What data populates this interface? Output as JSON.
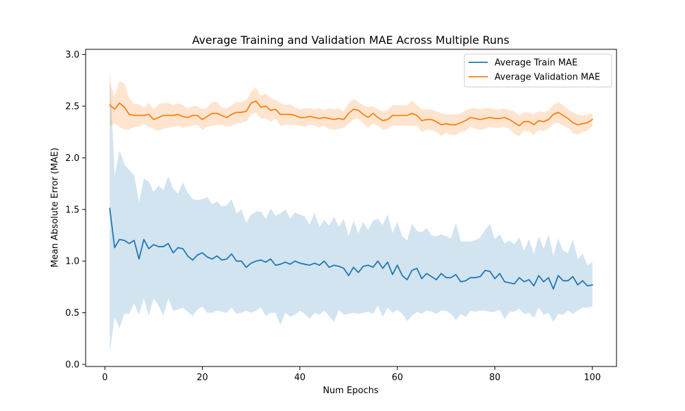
{
  "chart_data": {
    "type": "line",
    "title": "Average Training and Validation MAE Across Multiple Runs",
    "xlabel": "Num Epochs",
    "ylabel": "Mean Absolute Error (MAE)",
    "xlim": [
      -3.95,
      104.95
    ],
    "ylim": [
      -0.02,
      3.05
    ],
    "x_ticks": [
      0,
      20,
      40,
      60,
      80,
      100
    ],
    "y_ticks": [
      0.0,
      0.5,
      1.0,
      1.5,
      2.0,
      2.5,
      3.0
    ],
    "x_tick_labels": [
      "0",
      "20",
      "40",
      "60",
      "80",
      "100"
    ],
    "y_tick_labels": [
      "0.0",
      "0.5",
      "1.0",
      "1.5",
      "2.0",
      "2.5",
      "3.0"
    ],
    "grid": false,
    "legend_position": "top-right",
    "x": [
      1,
      2,
      3,
      4,
      5,
      6,
      7,
      8,
      9,
      10,
      11,
      12,
      13,
      14,
      15,
      16,
      17,
      18,
      19,
      20,
      21,
      22,
      23,
      24,
      25,
      26,
      27,
      28,
      29,
      30,
      31,
      32,
      33,
      34,
      35,
      36,
      37,
      38,
      39,
      40,
      41,
      42,
      43,
      44,
      45,
      46,
      47,
      48,
      49,
      50,
      51,
      52,
      53,
      54,
      55,
      56,
      57,
      58,
      59,
      60,
      61,
      62,
      63,
      64,
      65,
      66,
      67,
      68,
      69,
      70,
      71,
      72,
      73,
      74,
      75,
      76,
      77,
      78,
      79,
      80,
      81,
      82,
      83,
      84,
      85,
      86,
      87,
      88,
      89,
      90,
      91,
      92,
      93,
      94,
      95,
      96,
      97,
      98,
      99,
      100
    ],
    "series": [
      {
        "name": "Average Train MAE",
        "color": "#1f77b4",
        "band_color": "#1f77b4",
        "band_opacity": 0.2,
        "values": [
          1.51,
          1.13,
          1.21,
          1.2,
          1.17,
          1.2,
          1.02,
          1.21,
          1.12,
          1.16,
          1.14,
          1.14,
          1.17,
          1.08,
          1.13,
          1.12,
          1.05,
          1.01,
          1.06,
          1.08,
          1.04,
          1.02,
          1.05,
          1.01,
          1.02,
          1.07,
          1.0,
          1.0,
          0.94,
          0.98,
          1.0,
          1.01,
          0.99,
          1.02,
          0.96,
          0.97,
          0.99,
          0.97,
          1.0,
          0.98,
          0.97,
          0.96,
          0.98,
          0.96,
          1.0,
          0.94,
          0.96,
          0.95,
          0.93,
          0.86,
          0.94,
          0.89,
          0.95,
          0.96,
          0.94,
          1.0,
          0.93,
          0.99,
          0.87,
          0.96,
          0.86,
          0.82,
          0.91,
          0.93,
          0.83,
          0.88,
          0.85,
          0.82,
          0.88,
          0.84,
          0.84,
          0.87,
          0.8,
          0.81,
          0.84,
          0.84,
          0.85,
          0.91,
          0.9,
          0.83,
          0.88,
          0.8,
          0.79,
          0.78,
          0.84,
          0.8,
          0.82,
          0.76,
          0.86,
          0.8,
          0.84,
          0.73,
          0.86,
          0.81,
          0.81,
          0.85,
          0.77,
          0.81,
          0.76,
          0.77
        ],
        "upper": [
          2.88,
          1.82,
          2.07,
          1.94,
          1.88,
          1.83,
          1.57,
          1.8,
          1.77,
          1.67,
          1.73,
          1.69,
          1.82,
          1.7,
          1.65,
          1.76,
          1.66,
          1.6,
          1.59,
          1.6,
          1.62,
          1.55,
          1.58,
          1.53,
          1.54,
          1.6,
          1.46,
          1.5,
          1.37,
          1.45,
          1.48,
          1.48,
          1.41,
          1.51,
          1.44,
          1.46,
          1.5,
          1.41,
          1.47,
          1.45,
          1.43,
          1.35,
          1.47,
          1.33,
          1.4,
          1.34,
          1.43,
          1.33,
          1.41,
          1.24,
          1.39,
          1.27,
          1.38,
          1.3,
          1.39,
          1.41,
          1.35,
          1.45,
          1.27,
          1.38,
          1.24,
          1.2,
          1.36,
          1.29,
          1.28,
          1.32,
          1.25,
          1.24,
          1.26,
          1.24,
          1.22,
          1.37,
          1.19,
          1.19,
          1.19,
          1.2,
          1.23,
          1.3,
          1.36,
          1.21,
          1.26,
          1.17,
          1.2,
          1.16,
          1.23,
          1.1,
          1.21,
          1.07,
          1.24,
          1.12,
          1.26,
          1.05,
          1.22,
          1.1,
          1.08,
          1.21,
          1.02,
          1.07,
          0.96,
          0.99
        ],
        "lower": [
          0.12,
          0.46,
          0.35,
          0.49,
          0.49,
          0.59,
          0.48,
          0.64,
          0.47,
          0.64,
          0.57,
          0.47,
          0.64,
          0.52,
          0.53,
          0.55,
          0.51,
          0.47,
          0.53,
          0.56,
          0.5,
          0.5,
          0.52,
          0.51,
          0.5,
          0.55,
          0.49,
          0.5,
          0.52,
          0.5,
          0.52,
          0.55,
          0.47,
          0.5,
          0.5,
          0.38,
          0.5,
          0.46,
          0.48,
          0.52,
          0.49,
          0.44,
          0.5,
          0.48,
          0.52,
          0.47,
          0.41,
          0.53,
          0.48,
          0.49,
          0.5,
          0.49,
          0.5,
          0.51,
          0.49,
          0.57,
          0.46,
          0.55,
          0.5,
          0.53,
          0.49,
          0.42,
          0.47,
          0.51,
          0.49,
          0.52,
          0.51,
          0.49,
          0.52,
          0.52,
          0.49,
          0.43,
          0.49,
          0.46,
          0.52,
          0.51,
          0.52,
          0.52,
          0.51,
          0.51,
          0.53,
          0.44,
          0.51,
          0.51,
          0.54,
          0.49,
          0.5,
          0.45,
          0.55,
          0.48,
          0.5,
          0.41,
          0.49,
          0.48,
          0.52,
          0.49,
          0.52,
          0.55,
          0.55,
          0.56
        ]
      },
      {
        "name": "Average Validation MAE",
        "color": "#ff7f0e",
        "band_color": "#ff7f0e",
        "band_opacity": 0.2,
        "values": [
          2.51,
          2.47,
          2.53,
          2.49,
          2.42,
          2.41,
          2.41,
          2.41,
          2.42,
          2.37,
          2.39,
          2.41,
          2.41,
          2.41,
          2.42,
          2.4,
          2.39,
          2.41,
          2.41,
          2.37,
          2.4,
          2.43,
          2.43,
          2.41,
          2.39,
          2.42,
          2.44,
          2.44,
          2.45,
          2.53,
          2.55,
          2.49,
          2.5,
          2.46,
          2.47,
          2.42,
          2.42,
          2.42,
          2.41,
          2.39,
          2.39,
          2.4,
          2.39,
          2.38,
          2.39,
          2.38,
          2.37,
          2.38,
          2.37,
          2.43,
          2.47,
          2.46,
          2.42,
          2.39,
          2.43,
          2.39,
          2.36,
          2.37,
          2.41,
          2.41,
          2.41,
          2.41,
          2.43,
          2.41,
          2.36,
          2.37,
          2.37,
          2.35,
          2.32,
          2.33,
          2.32,
          2.32,
          2.34,
          2.36,
          2.39,
          2.38,
          2.37,
          2.38,
          2.39,
          2.38,
          2.38,
          2.39,
          2.37,
          2.34,
          2.31,
          2.35,
          2.35,
          2.32,
          2.36,
          2.35,
          2.37,
          2.42,
          2.44,
          2.41,
          2.38,
          2.34,
          2.32,
          2.33,
          2.34,
          2.37
        ],
        "upper": [
          2.73,
          2.6,
          2.74,
          2.72,
          2.58,
          2.52,
          2.52,
          2.49,
          2.53,
          2.47,
          2.52,
          2.53,
          2.53,
          2.51,
          2.53,
          2.51,
          2.48,
          2.5,
          2.5,
          2.47,
          2.49,
          2.54,
          2.54,
          2.49,
          2.48,
          2.51,
          2.54,
          2.54,
          2.56,
          2.64,
          2.68,
          2.6,
          2.62,
          2.58,
          2.56,
          2.53,
          2.51,
          2.52,
          2.49,
          2.47,
          2.48,
          2.48,
          2.47,
          2.48,
          2.46,
          2.48,
          2.47,
          2.48,
          2.45,
          2.53,
          2.57,
          2.54,
          2.51,
          2.49,
          2.5,
          2.47,
          2.45,
          2.46,
          2.51,
          2.51,
          2.51,
          2.51,
          2.55,
          2.51,
          2.47,
          2.47,
          2.47,
          2.45,
          2.43,
          2.42,
          2.42,
          2.42,
          2.43,
          2.46,
          2.48,
          2.48,
          2.47,
          2.48,
          2.48,
          2.47,
          2.47,
          2.48,
          2.46,
          2.45,
          2.41,
          2.44,
          2.44,
          2.42,
          2.45,
          2.44,
          2.46,
          2.51,
          2.54,
          2.51,
          2.47,
          2.44,
          2.42,
          2.41,
          2.42,
          2.43
        ],
        "lower": [
          2.31,
          2.33,
          2.3,
          2.27,
          2.27,
          2.3,
          2.3,
          2.33,
          2.3,
          2.28,
          2.26,
          2.28,
          2.29,
          2.3,
          2.31,
          2.29,
          2.3,
          2.31,
          2.32,
          2.27,
          2.3,
          2.31,
          2.32,
          2.32,
          2.3,
          2.31,
          2.33,
          2.34,
          2.35,
          2.42,
          2.44,
          2.38,
          2.38,
          2.35,
          2.38,
          2.31,
          2.32,
          2.32,
          2.32,
          2.31,
          2.3,
          2.32,
          2.31,
          2.29,
          2.31,
          2.28,
          2.27,
          2.28,
          2.29,
          2.33,
          2.37,
          2.38,
          2.33,
          2.29,
          2.33,
          2.31,
          2.27,
          2.28,
          2.31,
          2.31,
          2.31,
          2.31,
          2.31,
          2.31,
          2.25,
          2.27,
          2.27,
          2.25,
          2.21,
          2.24,
          2.22,
          2.22,
          2.25,
          2.26,
          2.3,
          2.28,
          2.27,
          2.28,
          2.3,
          2.29,
          2.29,
          2.3,
          2.28,
          2.23,
          2.21,
          2.26,
          2.26,
          2.22,
          2.27,
          2.26,
          2.28,
          2.33,
          2.34,
          2.31,
          2.29,
          2.24,
          2.22,
          2.25,
          2.26,
          2.31
        ]
      }
    ]
  }
}
